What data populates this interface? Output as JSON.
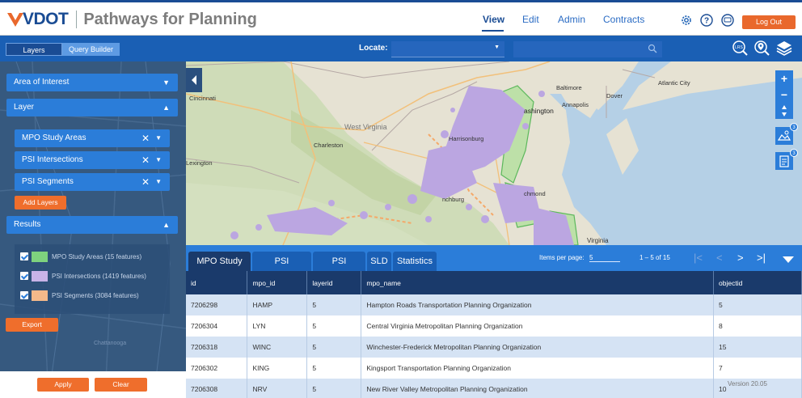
{
  "header": {
    "logo_text": "VDOT",
    "app_title": "Pathways for Planning",
    "nav": [
      "View",
      "Edit",
      "Admin",
      "Contracts"
    ],
    "active_nav": "View",
    "logout_label": "Log Out",
    "icons": [
      "gear-icon",
      "help-icon",
      "chat-icon"
    ]
  },
  "toolbar": {
    "segments": [
      "Layers",
      "Query Builder"
    ],
    "locate_label": "Locate:",
    "locate_value": "",
    "search_value": "",
    "right_icons": [
      "lrs-icon",
      "location-pin-icon",
      "layers-stack-icon"
    ]
  },
  "panel": {
    "area_of_interest": "Area of Interest",
    "layer_header": "Layer",
    "layers": [
      "MPO Study Areas",
      "PSI Intersections",
      "PSI Segments"
    ],
    "add_layers": "Add Layers",
    "results_header": "Results",
    "results": [
      {
        "label": "MPO Study Areas (15 features)",
        "color": "#7ed27e"
      },
      {
        "label": "PSI Intersections (1419 features)",
        "color": "#c8b3e8"
      },
      {
        "label": "PSI Segments (3084 features)",
        "color": "#f4b98a"
      }
    ],
    "export": "Export",
    "apply": "Apply",
    "clear": "Clear"
  },
  "map": {
    "labels": {
      "cincinnati": "Cincinnati",
      "west_virginia": "West Virginia",
      "charleston": "Charleston",
      "lexington": "Lexington",
      "harrisonburg": "Harrisonburg",
      "washington": "ashington",
      "baltimore": "Baltimore",
      "annapolis": "Annapolis",
      "dover": "Dover",
      "atlantic_city": "Atlantic City",
      "lynchburg": "nchburg",
      "richmond": "chmond",
      "virginia": "Virginia",
      "chattanooga": "Chattanooga"
    },
    "controls": {
      "zoom_in": "+",
      "zoom_out": "−",
      "badge1": "3",
      "badge2": "3"
    }
  },
  "results_table": {
    "tabs": [
      "MPO Study",
      "PSI",
      "PSI",
      "SLD",
      "Statistics"
    ],
    "items_per_page_label": "Items per page:",
    "items_per_page": "5",
    "range": "1 – 5 of 15",
    "columns": [
      "id",
      "mpo_id",
      "layerid",
      "mpo_name",
      "objectid"
    ],
    "rows": [
      [
        "7206298",
        "HAMP",
        "5",
        "Hampton Roads Transportation Planning Organization",
        "5"
      ],
      [
        "7206304",
        "LYN",
        "5",
        "Central Virginia Metropolitan Planning Organization",
        "8"
      ],
      [
        "7206318",
        "WINC",
        "5",
        "Winchester-Frederick Metropolitan Planning Organization",
        "15"
      ],
      [
        "7206302",
        "KING",
        "5",
        "Kingsport Transportation Planning Organization",
        "7"
      ],
      [
        "7206308",
        "NRV",
        "5",
        "New River Valley Metropolitan Planning Organization",
        "10"
      ]
    ],
    "version": "Version 20.05"
  }
}
